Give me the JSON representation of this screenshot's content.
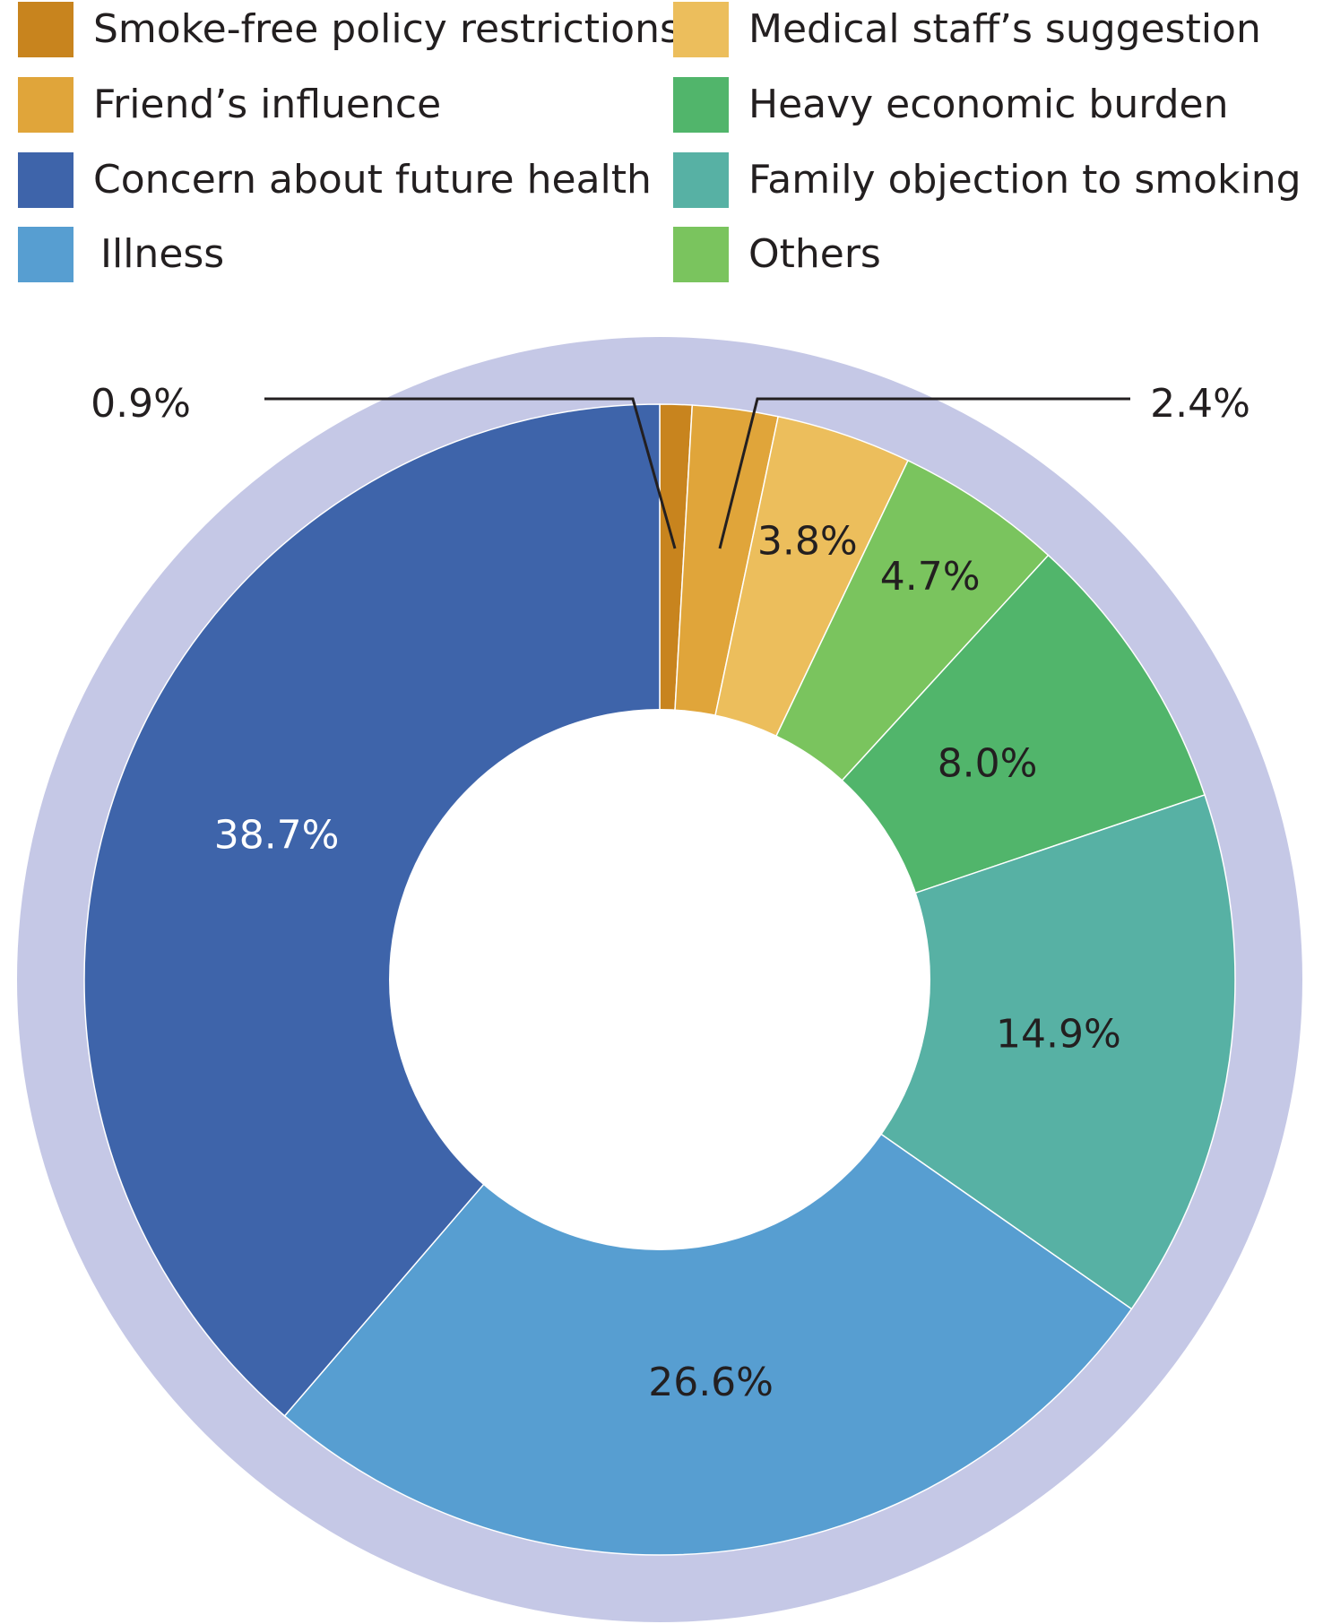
{
  "chart_data": {
    "type": "pie",
    "variant": "donut",
    "title": "",
    "legend_position": "top",
    "slices": [
      {
        "label": "Smoke-free policy restrictions",
        "value": 0.9,
        "value_label": "0.9%",
        "color": "#c8841e"
      },
      {
        "label": "Friend’s influence",
        "value": 2.4,
        "value_label": "2.4%",
        "color": "#e0a53a"
      },
      {
        "label": "Medical staff’s suggestion",
        "value": 3.8,
        "value_label": "3.8%",
        "color": "#ecbe5c"
      },
      {
        "label": "Others",
        "value": 4.7,
        "value_label": "4.7%",
        "color": "#7ac45e"
      },
      {
        "label": "Heavy economic burden",
        "value": 8.0,
        "value_label": "8.0%",
        "color": "#51b56b"
      },
      {
        "label": "Family objection to smoking",
        "value": 14.9,
        "value_label": "14.9%",
        "color": "#57b1a4"
      },
      {
        "label": "Illness",
        "value": 26.6,
        "value_label": "26.6%",
        "color": "#579ed1"
      },
      {
        "label": "Concern about future health",
        "value": 38.7,
        "value_label": "38.7%",
        "color": "#3e64aa"
      }
    ],
    "legend_order": [
      "Smoke-free policy restrictions",
      "Medical staff’s suggestion",
      "Friend’s influence",
      "Heavy economic burden",
      "Concern about future health",
      "Family objection to smoking",
      "Illness",
      "Others"
    ],
    "outer_ring_color": "#c5c8e6"
  }
}
